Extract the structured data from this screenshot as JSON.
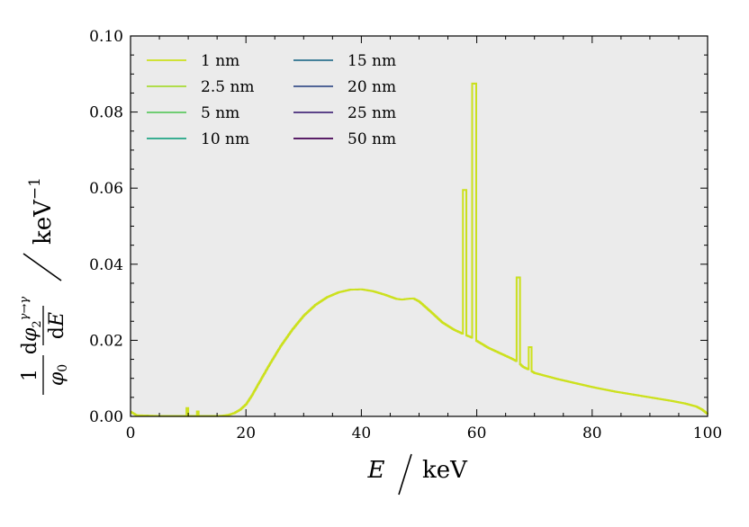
{
  "chart_data": {
    "type": "line",
    "xlabel": "E / keV",
    "ylabel": "(1/φ0) dφ2^(γ→γ)/dE / keV^−1",
    "xlim": [
      0,
      100
    ],
    "ylim": [
      0,
      0.1
    ],
    "x_ticks": [
      "0",
      "20",
      "40",
      "60",
      "80",
      "100"
    ],
    "y_ticks": [
      "0.00",
      "0.02",
      "0.04",
      "0.06",
      "0.08",
      "0.10"
    ],
    "background": "#ebebeb",
    "grid": false,
    "legend_position": "top-left",
    "curve_shape": {
      "x": [
        0,
        1,
        3,
        5,
        8,
        10,
        12,
        14,
        15,
        16,
        17,
        18,
        19,
        20,
        21,
        22,
        24,
        26,
        28,
        30,
        32,
        34,
        36,
        38,
        40,
        42,
        44,
        46,
        47,
        48,
        49,
        50,
        52,
        54,
        56,
        58,
        59,
        60,
        62,
        64,
        66,
        67,
        68,
        69,
        70,
        72,
        74,
        76,
        78,
        80,
        82,
        84,
        86,
        88,
        90,
        92,
        94,
        96,
        98,
        99,
        100
      ],
      "y": [
        0.0012,
        0.0003,
        0.0002,
        0.0001,
        0.0001,
        0.0001,
        0.0001,
        0.0001,
        0.0001,
        0.0002,
        0.0004,
        0.0009,
        0.0018,
        0.0032,
        0.0055,
        0.0082,
        0.0135,
        0.0185,
        0.0228,
        0.0265,
        0.0293,
        0.0313,
        0.0326,
        0.0333,
        0.0334,
        0.0329,
        0.032,
        0.0309,
        0.0307,
        0.0309,
        0.031,
        0.0302,
        0.0275,
        0.0247,
        0.0228,
        0.0214,
        0.0208,
        0.0198,
        0.018,
        0.0166,
        0.0152,
        0.0144,
        0.013,
        0.0123,
        0.0114,
        0.0106,
        0.0098,
        0.0091,
        0.0084,
        0.0077,
        0.0071,
        0.0065,
        0.006,
        0.0055,
        0.005,
        0.0045,
        0.004,
        0.0034,
        0.0026,
        0.0018,
        0.0006
      ]
    },
    "peaks": [
      {
        "x0": 57.6,
        "x1": 58.2,
        "y": 0.0595
      },
      {
        "x0": 59.2,
        "x1": 59.9,
        "y": 0.0875
      },
      {
        "x0": 66.9,
        "x1": 67.5,
        "y": 0.0365
      },
      {
        "x0": 69.0,
        "x1": 69.5,
        "y": 0.0182
      }
    ],
    "low_energy_spikes": [
      {
        "x0": 9.7,
        "x1": 10.0,
        "y": 0.0022
      },
      {
        "x0": 11.5,
        "x1": 11.8,
        "y": 0.0013
      }
    ],
    "series": [
      {
        "name": "1 nm",
        "color": "#cde11d"
      },
      {
        "name": "2.5 nm",
        "color": "#a8db34"
      },
      {
        "name": "5 nm",
        "color": "#5ec962"
      },
      {
        "name": "10 nm",
        "color": "#21a585"
      },
      {
        "name": "15 nm",
        "color": "#2c728e"
      },
      {
        "name": "20 nm",
        "color": "#3b528b"
      },
      {
        "name": "25 nm",
        "color": "#472d7b"
      },
      {
        "name": "50 nm",
        "color": "#440154"
      }
    ]
  }
}
